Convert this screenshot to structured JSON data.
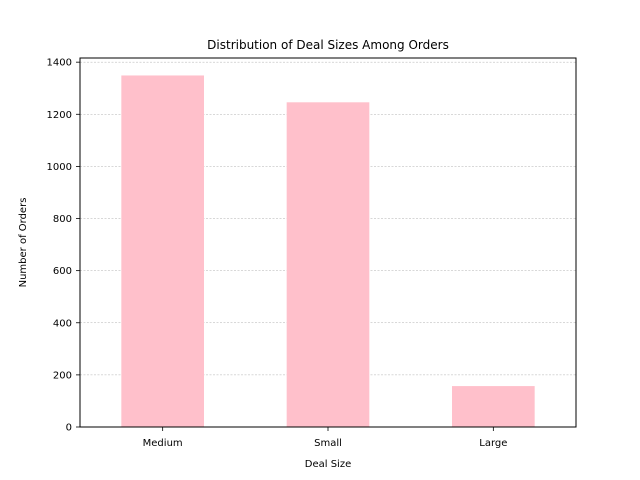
{
  "chart_data": {
    "type": "bar",
    "title": "Distribution of Deal Sizes Among Orders",
    "xlabel": "Deal Size",
    "ylabel": "Number of Orders",
    "categories": [
      "Medium",
      "Small",
      "Large"
    ],
    "values": [
      1349,
      1246,
      157
    ],
    "ylim": [
      0,
      1416
    ],
    "yticks": [
      0,
      200,
      400,
      600,
      800,
      1000,
      1200,
      1400
    ],
    "grid": "y-dashed",
    "bar_color": "#ffc0cb",
    "grid_color": "#b0b0b0"
  }
}
